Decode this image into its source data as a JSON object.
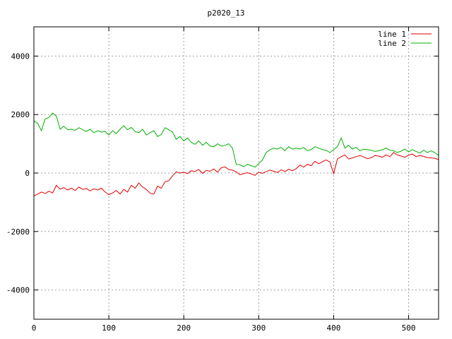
{
  "chart_data": {
    "type": "line",
    "title": "p2020_13",
    "xlabel": "",
    "ylabel": "",
    "xlim": [
      0,
      540
    ],
    "ylim": [
      -5000,
      5000
    ],
    "xticks": [
      0,
      100,
      200,
      300,
      400,
      500
    ],
    "xtick_labels": [
      "0",
      "100",
      "200",
      "300",
      "400",
      "500"
    ],
    "yticks": [
      -4000,
      -2000,
      0,
      2000,
      4000
    ],
    "ytick_labels": [
      "-4000",
      "-2000",
      "0",
      "2000",
      "4000"
    ],
    "grid": true,
    "legend_position": "top-right",
    "series": [
      {
        "name": "line 1",
        "color": "#e00000",
        "x": [
          0,
          5,
          10,
          15,
          20,
          25,
          30,
          35,
          40,
          45,
          50,
          55,
          60,
          65,
          70,
          75,
          80,
          85,
          90,
          95,
          100,
          105,
          110,
          115,
          120,
          125,
          130,
          135,
          140,
          145,
          150,
          155,
          160,
          165,
          170,
          175,
          180,
          185,
          190,
          195,
          200,
          205,
          210,
          215,
          220,
          225,
          230,
          235,
          240,
          245,
          250,
          255,
          260,
          265,
          270,
          275,
          280,
          285,
          290,
          295,
          300,
          305,
          310,
          315,
          320,
          325,
          330,
          335,
          340,
          345,
          350,
          355,
          360,
          365,
          370,
          375,
          380,
          385,
          390,
          395,
          400,
          405,
          410,
          415,
          420,
          425,
          430,
          435,
          440,
          445,
          450,
          455,
          460,
          465,
          470,
          475,
          480,
          485,
          490,
          495,
          500,
          505,
          510,
          515,
          520,
          525,
          530,
          535,
          540
        ],
        "y": [
          -780,
          -720,
          -650,
          -700,
          -620,
          -680,
          -420,
          -550,
          -500,
          -580,
          -520,
          -600,
          -480,
          -560,
          -530,
          -610,
          -540,
          -580,
          -520,
          -650,
          -740,
          -680,
          -600,
          -720,
          -560,
          -650,
          -420,
          -520,
          -340,
          -480,
          -560,
          -690,
          -720,
          -450,
          -520,
          -300,
          -260,
          -100,
          40,
          0,
          30,
          -20,
          80,
          50,
          120,
          -10,
          90,
          60,
          140,
          30,
          180,
          210,
          120,
          100,
          40,
          -60,
          -20,
          10,
          -30,
          -80,
          30,
          -10,
          50,
          100,
          60,
          20,
          110,
          50,
          130,
          80,
          150,
          270,
          200,
          300,
          250,
          400,
          320,
          390,
          450,
          380,
          -20,
          480,
          560,
          620,
          480,
          520,
          560,
          600,
          550,
          490,
          520,
          600,
          580,
          540,
          620,
          560,
          700,
          620,
          580,
          540,
          610,
          650,
          560,
          600,
          570,
          530,
          520,
          500,
          460
        ]
      },
      {
        "name": "line 2",
        "color": "#00b000",
        "x": [
          0,
          5,
          10,
          15,
          20,
          25,
          30,
          35,
          40,
          45,
          50,
          55,
          60,
          65,
          70,
          75,
          80,
          85,
          90,
          95,
          100,
          105,
          110,
          115,
          120,
          125,
          130,
          135,
          140,
          145,
          150,
          155,
          160,
          165,
          170,
          175,
          180,
          185,
          190,
          195,
          200,
          205,
          210,
          215,
          220,
          225,
          230,
          235,
          240,
          245,
          250,
          255,
          260,
          265,
          270,
          275,
          280,
          285,
          290,
          295,
          300,
          305,
          310,
          315,
          320,
          325,
          330,
          335,
          340,
          345,
          350,
          355,
          360,
          365,
          370,
          375,
          380,
          385,
          390,
          395,
          400,
          405,
          410,
          415,
          420,
          425,
          430,
          435,
          440,
          445,
          450,
          455,
          460,
          465,
          470,
          475,
          480,
          485,
          490,
          495,
          500,
          505,
          510,
          515,
          520,
          525,
          530,
          535,
          540
        ],
        "y": [
          1780,
          1700,
          1450,
          1850,
          1900,
          2050,
          1950,
          1500,
          1600,
          1480,
          1500,
          1460,
          1550,
          1480,
          1420,
          1500,
          1380,
          1450,
          1400,
          1420,
          1300,
          1450,
          1350,
          1500,
          1620,
          1480,
          1560,
          1420,
          1380,
          1500,
          1300,
          1380,
          1450,
          1250,
          1320,
          1550,
          1480,
          1400,
          1150,
          1250,
          1100,
          1200,
          1050,
          980,
          1100,
          950,
          1050,
          920,
          900,
          1000,
          920,
          950,
          1000,
          850,
          300,
          280,
          220,
          300,
          250,
          200,
          320,
          450,
          700,
          800,
          850,
          820,
          880,
          760,
          900,
          820,
          850,
          820,
          870,
          760,
          800,
          900,
          850,
          800,
          780,
          700,
          800,
          900,
          1200,
          850,
          950,
          820,
          880,
          760,
          820,
          800,
          780,
          740,
          760,
          800,
          850,
          780,
          760,
          700,
          750,
          820,
          720,
          800,
          740,
          680,
          780,
          700,
          760,
          700,
          600
        ]
      }
    ]
  }
}
